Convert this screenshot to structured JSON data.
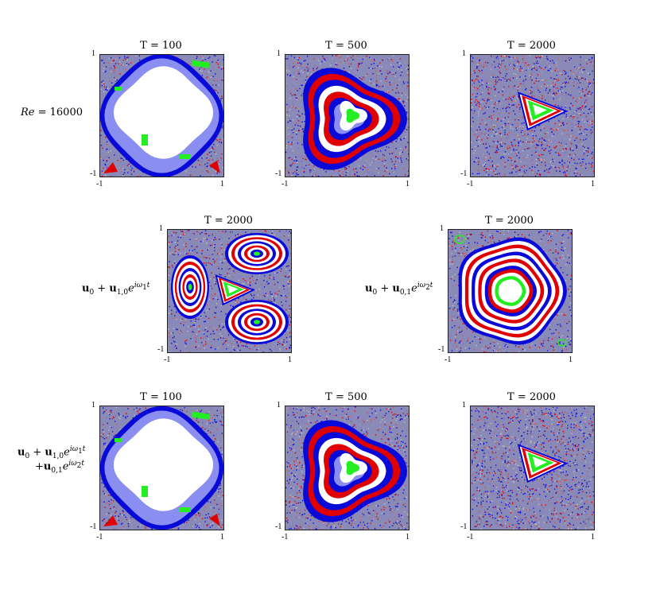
{
  "figure": {
    "row_labels": {
      "row1": "Re = 16000",
      "row2_left": "u0 + u1,0 e^{iω1 t}",
      "row2_right": "u0 + u0,1 e^{iω2 t}",
      "row3_line1": "u0 + u1,0 e^{iω1 t}",
      "row3_line2": "+u0,1 e^{iω2 t}"
    },
    "panels": [
      {
        "title": "T = 100",
        "kind": "big-white-blob",
        "xmin": "-1",
        "xmax": "1",
        "ymin": "-1",
        "ymax": "1"
      },
      {
        "title": "T = 500",
        "kind": "swirl",
        "xmin": "-1",
        "xmax": "1",
        "ymin": "-1",
        "ymax": "1"
      },
      {
        "title": "T = 2000",
        "kind": "small-triangle",
        "xmin": "-1",
        "xmax": "1",
        "ymin": "-1",
        "ymax": "1"
      },
      {
        "title": "T = 2000",
        "kind": "three-lobes",
        "xmin": "-1",
        "xmax": "1",
        "ymin": "-1",
        "ymax": "1"
      },
      {
        "title": "T = 2000",
        "kind": "concentric-rings",
        "xmin": "-1",
        "xmax": "1",
        "ymin": "-1",
        "ymax": "1"
      },
      {
        "title": "T = 100",
        "kind": "big-white-blob",
        "xmin": "-1",
        "xmax": "1",
        "ymin": "-1",
        "ymax": "1"
      },
      {
        "title": "T = 500",
        "kind": "swirl",
        "xmin": "-1",
        "xmax": "1",
        "ymin": "-1",
        "ymax": "1"
      },
      {
        "title": "T = 2000",
        "kind": "small-triangle",
        "xmin": "-1",
        "xmax": "1",
        "ymin": "-1",
        "ymax": "1"
      }
    ],
    "colors": {
      "noise_bg": "#8a8ab8",
      "blue": "#0a0ad8",
      "red": "#e00000",
      "green": "#22ee22",
      "light_blue": "#8a8ef0",
      "white": "#ffffff"
    }
  }
}
